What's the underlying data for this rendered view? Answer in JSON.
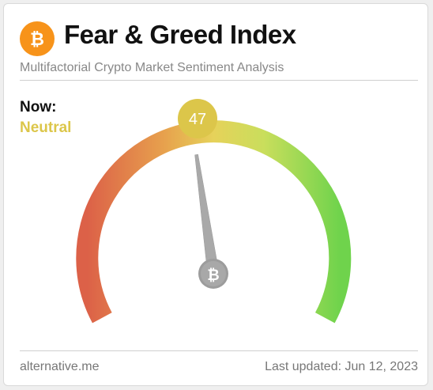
{
  "header": {
    "title": "Fear & Greed Index",
    "subtitle": "Multifactorial Crypto Market Sentiment Analysis",
    "logo_icon": "bitcoin-icon"
  },
  "status": {
    "now_label": "Now:",
    "classification": "Neutral",
    "value": "47",
    "accent_color": "#dcc64a"
  },
  "gauge": {
    "min": 0,
    "max": 100,
    "value": 47,
    "center_icon": "bitcoin-icon"
  },
  "footer": {
    "source": "alternative.me",
    "last_updated": "Last updated: Jun 12, 2023"
  }
}
